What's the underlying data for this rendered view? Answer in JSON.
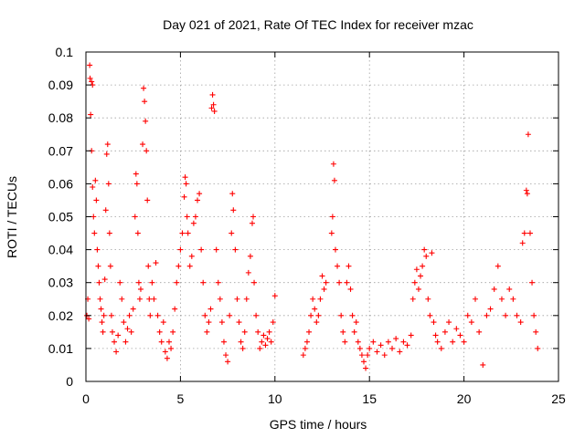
{
  "chart_data": {
    "type": "scatter",
    "title": "Day 021 of 2021, Rate Of TEC Index for receiver mzac",
    "xlabel": "GPS time / hours",
    "ylabel": "ROTI / TECUs",
    "xlim": [
      0,
      25
    ],
    "ylim": [
      0,
      0.1
    ],
    "x_ticks": [
      "0",
      "5",
      "10",
      "15",
      "20",
      "25"
    ],
    "y_ticks": [
      "0",
      "0.01",
      "0.02",
      "0.03",
      "0.04",
      "0.05",
      "0.06",
      "0.07",
      "0.08",
      "0.09",
      "0.1"
    ],
    "grid": true,
    "marker": "+",
    "color": "#ff0000",
    "series": [
      {
        "name": "ROTI",
        "points": [
          [
            0.05,
            0.02
          ],
          [
            0.1,
            0.025
          ],
          [
            0.15,
            0.019
          ],
          [
            0.2,
            0.096
          ],
          [
            0.22,
            0.092
          ],
          [
            0.25,
            0.081
          ],
          [
            0.3,
            0.091
          ],
          [
            0.35,
            0.09
          ],
          [
            0.3,
            0.07
          ],
          [
            0.35,
            0.059
          ],
          [
            0.4,
            0.05
          ],
          [
            0.45,
            0.045
          ],
          [
            0.5,
            0.061
          ],
          [
            0.55,
            0.055
          ],
          [
            0.6,
            0.04
          ],
          [
            0.65,
            0.035
          ],
          [
            0.7,
            0.03
          ],
          [
            0.75,
            0.025
          ],
          [
            0.8,
            0.022
          ],
          [
            0.85,
            0.018
          ],
          [
            0.9,
            0.015
          ],
          [
            0.95,
            0.02
          ],
          [
            1.0,
            0.031
          ],
          [
            1.05,
            0.052
          ],
          [
            1.1,
            0.069
          ],
          [
            1.15,
            0.072
          ],
          [
            1.2,
            0.06
          ],
          [
            1.25,
            0.045
          ],
          [
            1.3,
            0.035
          ],
          [
            1.35,
            0.02
          ],
          [
            1.4,
            0.015
          ],
          [
            1.5,
            0.012
          ],
          [
            1.6,
            0.009
          ],
          [
            1.7,
            0.014
          ],
          [
            1.8,
            0.03
          ],
          [
            1.9,
            0.025
          ],
          [
            2.0,
            0.018
          ],
          [
            2.1,
            0.012
          ],
          [
            2.2,
            0.016
          ],
          [
            2.3,
            0.02
          ],
          [
            2.4,
            0.015
          ],
          [
            2.5,
            0.022
          ],
          [
            2.6,
            0.05
          ],
          [
            2.65,
            0.063
          ],
          [
            2.7,
            0.06
          ],
          [
            2.75,
            0.045
          ],
          [
            2.8,
            0.03
          ],
          [
            2.85,
            0.025
          ],
          [
            2.9,
            0.028
          ],
          [
            3.0,
            0.072
          ],
          [
            3.05,
            0.089
          ],
          [
            3.1,
            0.085
          ],
          [
            3.15,
            0.079
          ],
          [
            3.2,
            0.07
          ],
          [
            3.25,
            0.055
          ],
          [
            3.3,
            0.035
          ],
          [
            3.35,
            0.025
          ],
          [
            3.4,
            0.02
          ],
          [
            3.5,
            0.03
          ],
          [
            3.6,
            0.025
          ],
          [
            3.7,
            0.036
          ],
          [
            3.8,
            0.02
          ],
          [
            3.9,
            0.015
          ],
          [
            4.0,
            0.012
          ],
          [
            4.1,
            0.018
          ],
          [
            4.2,
            0.009
          ],
          [
            4.3,
            0.007
          ],
          [
            4.4,
            0.012
          ],
          [
            4.5,
            0.01
          ],
          [
            4.6,
            0.015
          ],
          [
            4.7,
            0.022
          ],
          [
            4.8,
            0.03
          ],
          [
            4.9,
            0.035
          ],
          [
            5.0,
            0.04
          ],
          [
            5.1,
            0.045
          ],
          [
            5.2,
            0.056
          ],
          [
            5.25,
            0.062
          ],
          [
            5.3,
            0.06
          ],
          [
            5.35,
            0.05
          ],
          [
            5.4,
            0.045
          ],
          [
            5.5,
            0.035
          ],
          [
            5.6,
            0.038
          ],
          [
            5.7,
            0.048
          ],
          [
            5.8,
            0.05
          ],
          [
            5.9,
            0.055
          ],
          [
            6.0,
            0.057
          ],
          [
            6.1,
            0.04
          ],
          [
            6.2,
            0.03
          ],
          [
            6.3,
            0.02
          ],
          [
            6.4,
            0.015
          ],
          [
            6.5,
            0.018
          ],
          [
            6.6,
            0.022
          ],
          [
            6.65,
            0.083
          ],
          [
            6.7,
            0.087
          ],
          [
            6.75,
            0.084
          ],
          [
            6.8,
            0.082
          ],
          [
            6.9,
            0.04
          ],
          [
            7.0,
            0.03
          ],
          [
            7.1,
            0.025
          ],
          [
            7.2,
            0.018
          ],
          [
            7.3,
            0.012
          ],
          [
            7.4,
            0.008
          ],
          [
            7.5,
            0.006
          ],
          [
            7.6,
            0.02
          ],
          [
            7.7,
            0.045
          ],
          [
            7.75,
            0.057
          ],
          [
            7.8,
            0.052
          ],
          [
            7.9,
            0.04
          ],
          [
            8.0,
            0.025
          ],
          [
            8.1,
            0.018
          ],
          [
            8.2,
            0.012
          ],
          [
            8.3,
            0.01
          ],
          [
            8.4,
            0.015
          ],
          [
            8.5,
            0.025
          ],
          [
            8.6,
            0.033
          ],
          [
            8.7,
            0.038
          ],
          [
            8.8,
            0.048
          ],
          [
            8.85,
            0.05
          ],
          [
            8.9,
            0.03
          ],
          [
            9.0,
            0.02
          ],
          [
            9.1,
            0.015
          ],
          [
            9.2,
            0.01
          ],
          [
            9.3,
            0.012
          ],
          [
            9.4,
            0.014
          ],
          [
            9.5,
            0.011
          ],
          [
            9.6,
            0.013
          ],
          [
            9.7,
            0.015
          ],
          [
            9.8,
            0.012
          ],
          [
            9.9,
            0.018
          ],
          [
            10.0,
            0.026
          ],
          [
            11.5,
            0.008
          ],
          [
            11.6,
            0.01
          ],
          [
            11.7,
            0.012
          ],
          [
            11.8,
            0.015
          ],
          [
            11.9,
            0.02
          ],
          [
            12.0,
            0.025
          ],
          [
            12.1,
            0.022
          ],
          [
            12.2,
            0.018
          ],
          [
            12.3,
            0.02
          ],
          [
            12.4,
            0.025
          ],
          [
            12.5,
            0.032
          ],
          [
            12.6,
            0.028
          ],
          [
            12.7,
            0.03
          ],
          [
            13.0,
            0.045
          ],
          [
            13.05,
            0.05
          ],
          [
            13.1,
            0.066
          ],
          [
            13.15,
            0.061
          ],
          [
            13.2,
            0.04
          ],
          [
            13.3,
            0.035
          ],
          [
            13.4,
            0.03
          ],
          [
            13.5,
            0.02
          ],
          [
            13.6,
            0.015
          ],
          [
            13.7,
            0.012
          ],
          [
            13.8,
            0.03
          ],
          [
            13.9,
            0.035
          ],
          [
            14.0,
            0.028
          ],
          [
            14.1,
            0.02
          ],
          [
            14.2,
            0.015
          ],
          [
            14.3,
            0.018
          ],
          [
            14.4,
            0.012
          ],
          [
            14.5,
            0.01
          ],
          [
            14.6,
            0.008
          ],
          [
            14.7,
            0.006
          ],
          [
            14.8,
            0.004
          ],
          [
            14.9,
            0.008
          ],
          [
            15.0,
            0.01
          ],
          [
            15.2,
            0.012
          ],
          [
            15.4,
            0.009
          ],
          [
            15.6,
            0.011
          ],
          [
            15.8,
            0.008
          ],
          [
            16.0,
            0.012
          ],
          [
            16.2,
            0.01
          ],
          [
            16.4,
            0.013
          ],
          [
            16.6,
            0.009
          ],
          [
            16.8,
            0.012
          ],
          [
            17.0,
            0.011
          ],
          [
            17.2,
            0.014
          ],
          [
            17.3,
            0.025
          ],
          [
            17.4,
            0.03
          ],
          [
            17.5,
            0.034
          ],
          [
            17.6,
            0.028
          ],
          [
            17.7,
            0.032
          ],
          [
            17.8,
            0.035
          ],
          [
            17.9,
            0.04
          ],
          [
            18.0,
            0.038
          ],
          [
            18.1,
            0.025
          ],
          [
            18.2,
            0.02
          ],
          [
            18.3,
            0.039
          ],
          [
            18.4,
            0.018
          ],
          [
            18.5,
            0.014
          ],
          [
            18.6,
            0.012
          ],
          [
            18.8,
            0.01
          ],
          [
            19.0,
            0.015
          ],
          [
            19.2,
            0.018
          ],
          [
            19.4,
            0.012
          ],
          [
            19.6,
            0.016
          ],
          [
            19.8,
            0.014
          ],
          [
            20.0,
            0.012
          ],
          [
            20.2,
            0.02
          ],
          [
            20.4,
            0.018
          ],
          [
            20.6,
            0.025
          ],
          [
            20.8,
            0.015
          ],
          [
            21.0,
            0.005
          ],
          [
            21.2,
            0.02
          ],
          [
            21.4,
            0.022
          ],
          [
            21.6,
            0.028
          ],
          [
            21.8,
            0.035
          ],
          [
            22.0,
            0.025
          ],
          [
            22.2,
            0.02
          ],
          [
            22.4,
            0.028
          ],
          [
            22.6,
            0.025
          ],
          [
            22.8,
            0.02
          ],
          [
            23.0,
            0.018
          ],
          [
            23.1,
            0.042
          ],
          [
            23.2,
            0.045
          ],
          [
            23.3,
            0.058
          ],
          [
            23.35,
            0.057
          ],
          [
            23.4,
            0.075
          ],
          [
            23.5,
            0.045
          ],
          [
            23.6,
            0.03
          ],
          [
            23.7,
            0.02
          ],
          [
            23.8,
            0.015
          ],
          [
            23.9,
            0.01
          ]
        ]
      }
    ]
  }
}
